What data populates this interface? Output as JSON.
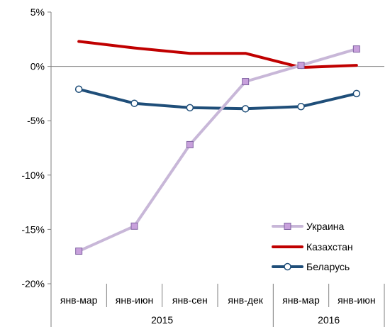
{
  "chart_data": {
    "type": "line",
    "title": "",
    "xlabel": "",
    "ylabel": "",
    "ylim": [
      -20,
      5
    ],
    "yticks": [
      "5%",
      "0%",
      "-5%",
      "-10%",
      "-15%",
      "-20%"
    ],
    "ytick_values": [
      5,
      0,
      -5,
      -10,
      -15,
      -20
    ],
    "categories": [
      "янв-мар",
      "янв-июн",
      "янв-сен",
      "янв-дек",
      "янв-мар",
      "янв-июн"
    ],
    "groups": [
      {
        "label": "2015",
        "count": 4
      },
      {
        "label": "2016",
        "count": 2
      }
    ],
    "grid": false,
    "legend_position": "bottom-right",
    "series": [
      {
        "name": "Украина",
        "color": "#c8b7d8",
        "marker": "square",
        "marker_fill": "#c8a0dc",
        "marker_stroke": "#8064a2",
        "values": [
          -17.0,
          -14.7,
          -7.2,
          -1.4,
          0.1,
          1.6
        ]
      },
      {
        "name": "Казахстан",
        "color": "#c00000",
        "marker": "none",
        "values": [
          2.3,
          1.7,
          1.2,
          1.2,
          -0.1,
          0.1
        ]
      },
      {
        "name": "Беларусь",
        "color": "#1f4e79",
        "marker": "circle",
        "marker_fill": "#ffffff",
        "marker_stroke": "#1f4e79",
        "values": [
          -2.1,
          -3.4,
          -3.8,
          -3.9,
          -3.7,
          -2.5
        ]
      }
    ]
  }
}
